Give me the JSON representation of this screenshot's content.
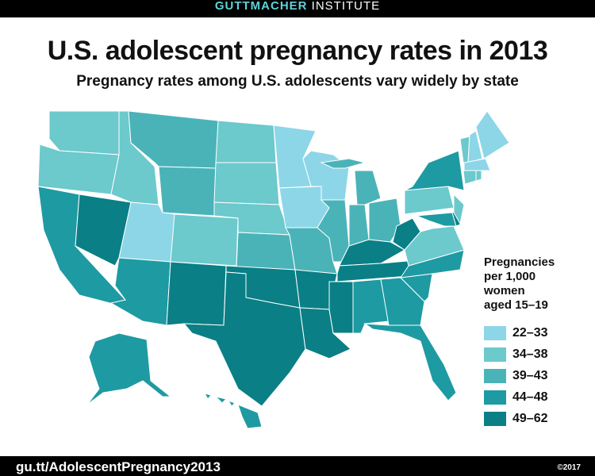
{
  "header": {
    "brand_bold": "GUTTMACHER",
    "brand_rest": " INSTITUTE"
  },
  "title": "U.S. adolescent pregnancy rates in 2013",
  "subtitle": "Pregnancy rates among U.S. adolescents vary widely by state",
  "legend": {
    "title_lines": [
      "Pregnancies",
      "per 1,000",
      "women",
      "aged 15–19"
    ],
    "bins": [
      {
        "label": "22–33",
        "color": "#8dd6e8"
      },
      {
        "label": "34–38",
        "color": "#6cc9cc"
      },
      {
        "label": "39–43",
        "color": "#4ab3b8"
      },
      {
        "label": "44–48",
        "color": "#1e9aa2"
      },
      {
        "label": "49–62",
        "color": "#0a7f86"
      }
    ]
  },
  "states": [
    {
      "id": "WA",
      "bin": 1
    },
    {
      "id": "OR",
      "bin": 1
    },
    {
      "id": "CA",
      "bin": 3
    },
    {
      "id": "NV",
      "bin": 4
    },
    {
      "id": "ID",
      "bin": 1
    },
    {
      "id": "MT",
      "bin": 2
    },
    {
      "id": "WY",
      "bin": 2
    },
    {
      "id": "UT",
      "bin": 0
    },
    {
      "id": "AZ",
      "bin": 3
    },
    {
      "id": "CO",
      "bin": 1
    },
    {
      "id": "NM",
      "bin": 4
    },
    {
      "id": "ND",
      "bin": 1
    },
    {
      "id": "SD",
      "bin": 1
    },
    {
      "id": "NE",
      "bin": 1
    },
    {
      "id": "KS",
      "bin": 2
    },
    {
      "id": "OK",
      "bin": 4
    },
    {
      "id": "TX",
      "bin": 4
    },
    {
      "id": "MN",
      "bin": 0
    },
    {
      "id": "IA",
      "bin": 0
    },
    {
      "id": "MO",
      "bin": 2
    },
    {
      "id": "AR",
      "bin": 4
    },
    {
      "id": "LA",
      "bin": 4
    },
    {
      "id": "WI",
      "bin": 0
    },
    {
      "id": "IL",
      "bin": 2
    },
    {
      "id": "MI",
      "bin": 2
    },
    {
      "id": "IN",
      "bin": 2
    },
    {
      "id": "OH",
      "bin": 2
    },
    {
      "id": "KY",
      "bin": 4
    },
    {
      "id": "TN",
      "bin": 4
    },
    {
      "id": "MS",
      "bin": 4
    },
    {
      "id": "AL",
      "bin": 3
    },
    {
      "id": "GA",
      "bin": 3
    },
    {
      "id": "FL",
      "bin": 3
    },
    {
      "id": "SC",
      "bin": 3
    },
    {
      "id": "NC",
      "bin": 3
    },
    {
      "id": "VA",
      "bin": 1
    },
    {
      "id": "WV",
      "bin": 4
    },
    {
      "id": "PA",
      "bin": 1
    },
    {
      "id": "NY",
      "bin": 3
    },
    {
      "id": "MD",
      "bin": 3
    },
    {
      "id": "DE",
      "bin": 4
    },
    {
      "id": "NJ",
      "bin": 1
    },
    {
      "id": "VT",
      "bin": 1
    },
    {
      "id": "NH",
      "bin": 0
    },
    {
      "id": "ME",
      "bin": 0
    },
    {
      "id": "MA",
      "bin": 0
    },
    {
      "id": "CT",
      "bin": 1
    },
    {
      "id": "RI",
      "bin": 1
    },
    {
      "id": "AK",
      "bin": 3
    },
    {
      "id": "HI",
      "bin": 3
    }
  ],
  "footer": {
    "url": "gu.tt/AdolescentPregnancy2013",
    "copyright": "©2017"
  }
}
